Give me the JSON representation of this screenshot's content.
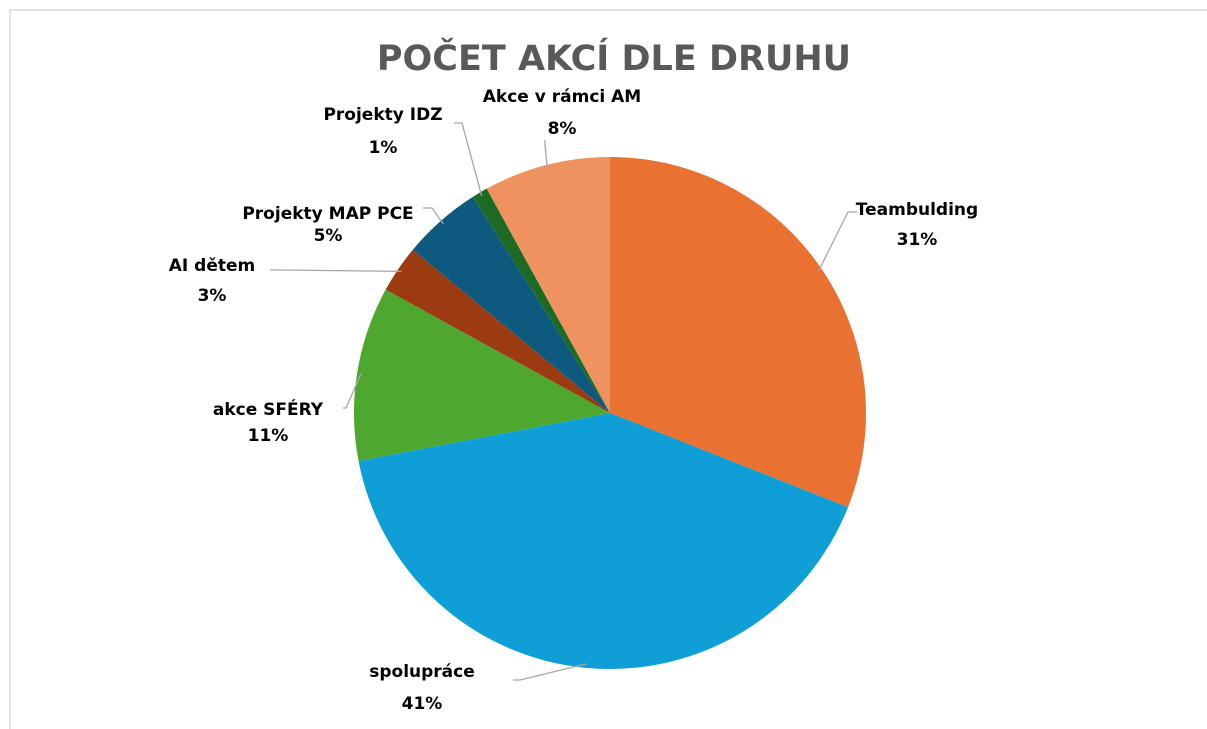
{
  "chart_data": {
    "type": "pie",
    "title": "POČET AKCÍ DLE DRUHU",
    "categories": [
      "Teambulding",
      "spolupráce",
      "akce SFÉRY",
      "AI dětem",
      "Projekty MAP PCE",
      "Projekty IDZ",
      "Akce v rámci AM"
    ],
    "values": [
      31,
      41,
      11,
      3,
      5,
      1,
      8
    ],
    "value_labels": [
      "31%",
      "41%",
      "11%",
      "3%",
      "5%",
      "1%",
      "8%"
    ],
    "colors": [
      "#e97132",
      "#0f9ed5",
      "#4ea72e",
      "#9c3a12",
      "#0e5a7e",
      "#1d6a23",
      "#f0925f"
    ]
  }
}
